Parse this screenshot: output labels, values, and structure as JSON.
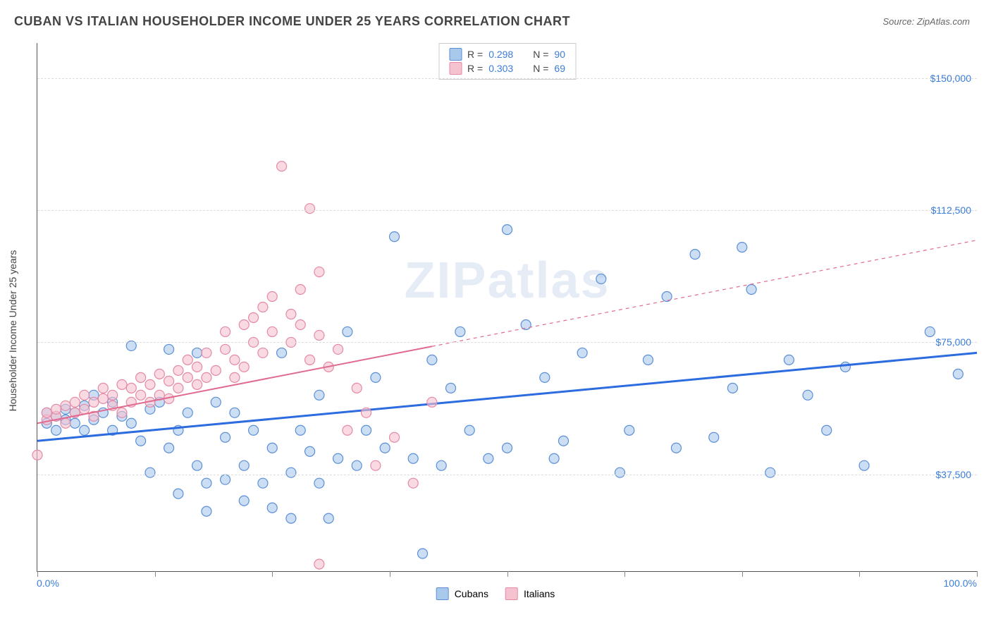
{
  "header": {
    "title": "CUBAN VS ITALIAN HOUSEHOLDER INCOME UNDER 25 YEARS CORRELATION CHART",
    "source": "Source: ZipAtlas.com"
  },
  "watermark": "ZIPatlas",
  "y_axis_label": "Householder Income Under 25 years",
  "chart": {
    "type": "scatter",
    "background_color": "#ffffff",
    "grid_color": "#dddddd",
    "axis_color": "#555555",
    "xlim": [
      0,
      100
    ],
    "ylim": [
      10000,
      160000
    ],
    "x_ticks": [
      0,
      12.5,
      25,
      37.5,
      50,
      62.5,
      75,
      87.5,
      100
    ],
    "x_tick_labels": {
      "0": "0.0%",
      "100": "100.0%"
    },
    "y_gridlines": [
      37500,
      75000,
      112500,
      150000
    ],
    "y_tick_labels": {
      "37500": "$37,500",
      "75000": "$75,000",
      "112500": "$112,500",
      "150000": "$150,000"
    },
    "legend_top": [
      {
        "swatch_fill": "#a8c8ec",
        "swatch_stroke": "#5b8fd6",
        "r_label": "R =",
        "r_value": "0.298",
        "n_label": "N =",
        "n_value": "90"
      },
      {
        "swatch_fill": "#f5c2cf",
        "swatch_stroke": "#e589a4",
        "r_label": "R =",
        "r_value": "0.303",
        "n_label": "N =",
        "n_value": "69"
      }
    ],
    "legend_bottom": [
      {
        "swatch_fill": "#a8c8ec",
        "swatch_stroke": "#5b8fd6",
        "label": "Cubans"
      },
      {
        "swatch_fill": "#f5c2cf",
        "swatch_stroke": "#e589a4",
        "label": "Italians"
      }
    ],
    "series": [
      {
        "name": "Cubans",
        "marker_fill": "rgba(168,200,236,0.6)",
        "marker_stroke": "#5b8fd6",
        "marker_radius": 7,
        "trend_color": "#2d6cdf",
        "trend_width": 3,
        "trend_dash": "none",
        "trend": {
          "x1": 0,
          "y1": 47000,
          "x2": 100,
          "y2": 72000
        },
        "points": [
          [
            1,
            55000
          ],
          [
            1,
            52000
          ],
          [
            2,
            54000
          ],
          [
            2,
            50000
          ],
          [
            3,
            56000
          ],
          [
            3,
            53000
          ],
          [
            4,
            52000
          ],
          [
            4,
            55000
          ],
          [
            5,
            57000
          ],
          [
            5,
            50000
          ],
          [
            6,
            53000
          ],
          [
            6,
            60000
          ],
          [
            7,
            55000
          ],
          [
            8,
            58000
          ],
          [
            8,
            50000
          ],
          [
            9,
            54000
          ],
          [
            10,
            74000
          ],
          [
            10,
            52000
          ],
          [
            11,
            47000
          ],
          [
            12,
            56000
          ],
          [
            12,
            38000
          ],
          [
            13,
            58000
          ],
          [
            14,
            73000
          ],
          [
            14,
            45000
          ],
          [
            15,
            50000
          ],
          [
            15,
            32000
          ],
          [
            16,
            55000
          ],
          [
            17,
            72000
          ],
          [
            17,
            40000
          ],
          [
            18,
            35000
          ],
          [
            18,
            27000
          ],
          [
            19,
            58000
          ],
          [
            20,
            48000
          ],
          [
            20,
            36000
          ],
          [
            21,
            55000
          ],
          [
            22,
            40000
          ],
          [
            22,
            30000
          ],
          [
            23,
            50000
          ],
          [
            24,
            35000
          ],
          [
            25,
            45000
          ],
          [
            25,
            28000
          ],
          [
            26,
            72000
          ],
          [
            27,
            38000
          ],
          [
            27,
            25000
          ],
          [
            28,
            50000
          ],
          [
            29,
            44000
          ],
          [
            30,
            35000
          ],
          [
            30,
            60000
          ],
          [
            31,
            25000
          ],
          [
            32,
            42000
          ],
          [
            33,
            78000
          ],
          [
            34,
            40000
          ],
          [
            35,
            50000
          ],
          [
            36,
            65000
          ],
          [
            37,
            45000
          ],
          [
            38,
            105000
          ],
          [
            40,
            42000
          ],
          [
            41,
            15000
          ],
          [
            42,
            70000
          ],
          [
            43,
            40000
          ],
          [
            44,
            62000
          ],
          [
            45,
            78000
          ],
          [
            46,
            50000
          ],
          [
            48,
            42000
          ],
          [
            50,
            107000
          ],
          [
            50,
            45000
          ],
          [
            52,
            80000
          ],
          [
            54,
            65000
          ],
          [
            55,
            42000
          ],
          [
            56,
            47000
          ],
          [
            58,
            72000
          ],
          [
            60,
            93000
          ],
          [
            62,
            38000
          ],
          [
            63,
            50000
          ],
          [
            65,
            70000
          ],
          [
            67,
            88000
          ],
          [
            68,
            45000
          ],
          [
            70,
            100000
          ],
          [
            72,
            48000
          ],
          [
            74,
            62000
          ],
          [
            75,
            102000
          ],
          [
            76,
            90000
          ],
          [
            78,
            38000
          ],
          [
            80,
            70000
          ],
          [
            82,
            60000
          ],
          [
            84,
            50000
          ],
          [
            86,
            68000
          ],
          [
            88,
            40000
          ],
          [
            95,
            78000
          ],
          [
            98,
            66000
          ]
        ]
      },
      {
        "name": "Italians",
        "marker_fill": "rgba(245,194,207,0.6)",
        "marker_stroke": "#e589a4",
        "marker_radius": 7,
        "trend_color": "#e06b8f",
        "trend_width": 2,
        "trend_dash": "none",
        "trend_solid_until": 42,
        "trend": {
          "x1": 0,
          "y1": 52000,
          "x2": 100,
          "y2": 104000
        },
        "points": [
          [
            0,
            43000
          ],
          [
            1,
            53000
          ],
          [
            1,
            55000
          ],
          [
            2,
            54000
          ],
          [
            2,
            56000
          ],
          [
            3,
            52000
          ],
          [
            3,
            57000
          ],
          [
            4,
            58000
          ],
          [
            4,
            55000
          ],
          [
            5,
            56000
          ],
          [
            5,
            60000
          ],
          [
            6,
            58000
          ],
          [
            6,
            54000
          ],
          [
            7,
            59000
          ],
          [
            7,
            62000
          ],
          [
            8,
            57000
          ],
          [
            8,
            60000
          ],
          [
            9,
            55000
          ],
          [
            9,
            63000
          ],
          [
            10,
            62000
          ],
          [
            10,
            58000
          ],
          [
            11,
            65000
          ],
          [
            11,
            60000
          ],
          [
            12,
            63000
          ],
          [
            12,
            58000
          ],
          [
            13,
            60000
          ],
          [
            13,
            66000
          ],
          [
            14,
            64000
          ],
          [
            14,
            59000
          ],
          [
            15,
            67000
          ],
          [
            15,
            62000
          ],
          [
            16,
            65000
          ],
          [
            16,
            70000
          ],
          [
            17,
            63000
          ],
          [
            17,
            68000
          ],
          [
            18,
            72000
          ],
          [
            18,
            65000
          ],
          [
            19,
            67000
          ],
          [
            20,
            73000
          ],
          [
            20,
            78000
          ],
          [
            21,
            70000
          ],
          [
            21,
            65000
          ],
          [
            22,
            80000
          ],
          [
            22,
            68000
          ],
          [
            23,
            75000
          ],
          [
            23,
            82000
          ],
          [
            24,
            85000
          ],
          [
            24,
            72000
          ],
          [
            25,
            88000
          ],
          [
            25,
            78000
          ],
          [
            26,
            125000
          ],
          [
            27,
            83000
          ],
          [
            27,
            75000
          ],
          [
            28,
            90000
          ],
          [
            28,
            80000
          ],
          [
            29,
            113000
          ],
          [
            29,
            70000
          ],
          [
            30,
            95000
          ],
          [
            30,
            77000
          ],
          [
            31,
            68000
          ],
          [
            32,
            73000
          ],
          [
            33,
            50000
          ],
          [
            34,
            62000
          ],
          [
            35,
            55000
          ],
          [
            36,
            40000
          ],
          [
            38,
            48000
          ],
          [
            40,
            35000
          ],
          [
            42,
            58000
          ],
          [
            30,
            12000
          ]
        ]
      }
    ]
  }
}
